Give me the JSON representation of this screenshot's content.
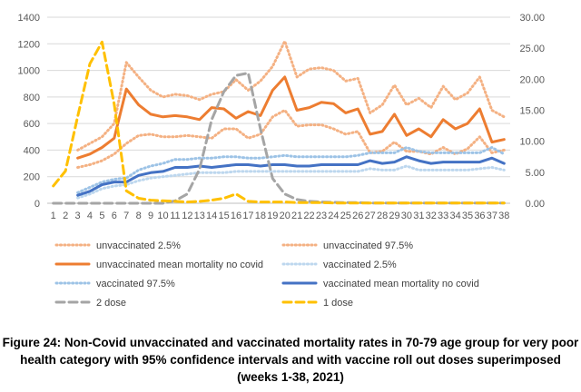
{
  "caption": {
    "line1": "Figure 24: Non-Covid unvaccinated and vaccinated mortality rates in 70-79 age group for very poor",
    "line2": "health category with 95% confidence intervals and with vaccine roll out doses superimposed",
    "line3": "(weeks 1-38, 2021)"
  },
  "chart_data": {
    "type": "line",
    "x": [
      1,
      2,
      3,
      4,
      5,
      6,
      7,
      8,
      9,
      10,
      11,
      12,
      13,
      14,
      15,
      16,
      17,
      18,
      19,
      20,
      21,
      22,
      23,
      24,
      25,
      26,
      27,
      28,
      29,
      30,
      31,
      32,
      33,
      34,
      35,
      36,
      37,
      38
    ],
    "y_left_ticks": [
      "0",
      "200",
      "400",
      "600",
      "800",
      "1000",
      "1200",
      "1400"
    ],
    "y_right_ticks": [
      "0.00",
      "5.00",
      "10.00",
      "15.00",
      "20.00",
      "25.00",
      "30.00"
    ],
    "ylim_left": [
      0,
      1400
    ],
    "ylim_right": [
      0,
      30
    ],
    "grid": true,
    "legend_position": "bottom",
    "series": [
      {
        "name": "unvaccinated 2.5%",
        "axis": "left",
        "color": "#F4B183",
        "style": "dotted",
        "values": [
          null,
          null,
          270,
          290,
          320,
          370,
          450,
          510,
          520,
          500,
          500,
          510,
          500,
          490,
          560,
          560,
          490,
          520,
          650,
          700,
          580,
          590,
          590,
          560,
          520,
          540,
          380,
          390,
          460,
          390,
          390,
          370,
          420,
          370,
          410,
          500,
          380,
          400
        ]
      },
      {
        "name": "unvaccinated  97.5%",
        "axis": "left",
        "color": "#F4B183",
        "style": "dotted",
        "values": [
          null,
          null,
          400,
          450,
          500,
          600,
          1060,
          950,
          850,
          800,
          820,
          810,
          780,
          820,
          840,
          930,
          850,
          920,
          1030,
          1220,
          950,
          1010,
          1020,
          1000,
          920,
          940,
          680,
          740,
          890,
          740,
          790,
          720,
          880,
          780,
          830,
          950,
          700,
          650
        ]
      },
      {
        "name": "unvaccinated mean mortality no covid",
        "axis": "left",
        "color": "#ED7D31",
        "style": "solid",
        "values": [
          null,
          null,
          340,
          370,
          420,
          490,
          860,
          740,
          670,
          650,
          660,
          650,
          630,
          720,
          710,
          640,
          690,
          660,
          850,
          950,
          700,
          720,
          760,
          750,
          680,
          710,
          520,
          540,
          670,
          510,
          560,
          500,
          630,
          560,
          600,
          710,
          460,
          480
        ]
      },
      {
        "name": "vaccinated 2.5%",
        "axis": "left",
        "color": "#BDD7EE",
        "style": "dotted",
        "values": [
          null,
          null,
          40,
          70,
          110,
          130,
          140,
          170,
          190,
          200,
          210,
          220,
          230,
          230,
          230,
          240,
          240,
          240,
          240,
          240,
          240,
          240,
          240,
          240,
          240,
          240,
          260,
          250,
          250,
          280,
          250,
          250,
          250,
          250,
          250,
          260,
          270,
          250
        ]
      },
      {
        "name": "vaccinated 97.5%",
        "axis": "left",
        "color": "#9DC3E6",
        "style": "dotted",
        "values": [
          null,
          null,
          80,
          120,
          160,
          180,
          190,
          250,
          280,
          300,
          330,
          330,
          340,
          340,
          350,
          350,
          340,
          340,
          350,
          360,
          350,
          350,
          350,
          350,
          350,
          360,
          380,
          380,
          380,
          420,
          390,
          380,
          380,
          380,
          380,
          380,
          420,
          370
        ]
      },
      {
        "name": "vaccinated mean mortality no covid",
        "axis": "left",
        "color": "#4472C4",
        "style": "solid",
        "values": [
          null,
          null,
          60,
          90,
          140,
          160,
          160,
          210,
          230,
          240,
          270,
          270,
          280,
          270,
          280,
          290,
          290,
          280,
          290,
          290,
          280,
          280,
          290,
          290,
          290,
          290,
          320,
          300,
          310,
          350,
          320,
          300,
          310,
          310,
          310,
          310,
          340,
          300
        ]
      },
      {
        "name": "2 dose",
        "axis": "right",
        "color": "#A5A5A5",
        "style": "dashed",
        "values": [
          0,
          0,
          0,
          0,
          0,
          0,
          0,
          0,
          0,
          0,
          0.4,
          1.5,
          5.5,
          13.5,
          18,
          20.6,
          21,
          12,
          4,
          1.5,
          0.6,
          0.3,
          0.2,
          0.15,
          0.1,
          0.1,
          0.05,
          0.05,
          0.05,
          0.05,
          0.05,
          0.05,
          0.05,
          0.05,
          0.05,
          0.05,
          0.05,
          0.05
        ]
      },
      {
        "name": "1 dose",
        "axis": "right",
        "color": "#FFC000",
        "style": "dashed",
        "values": [
          2.8,
          5.2,
          14,
          22.5,
          26,
          16,
          2,
          0.8,
          0.5,
          0.4,
          0.3,
          0.2,
          0.3,
          0.5,
          0.8,
          1.5,
          0.3,
          0.2,
          0.2,
          0.2,
          0.1,
          0.1,
          0.1,
          0.05,
          0.05,
          0.05,
          0.05,
          0.05,
          0.05,
          0.05,
          0.05,
          0.05,
          0.05,
          0.05,
          0.05,
          0.05,
          0.05,
          0.05
        ]
      }
    ]
  }
}
